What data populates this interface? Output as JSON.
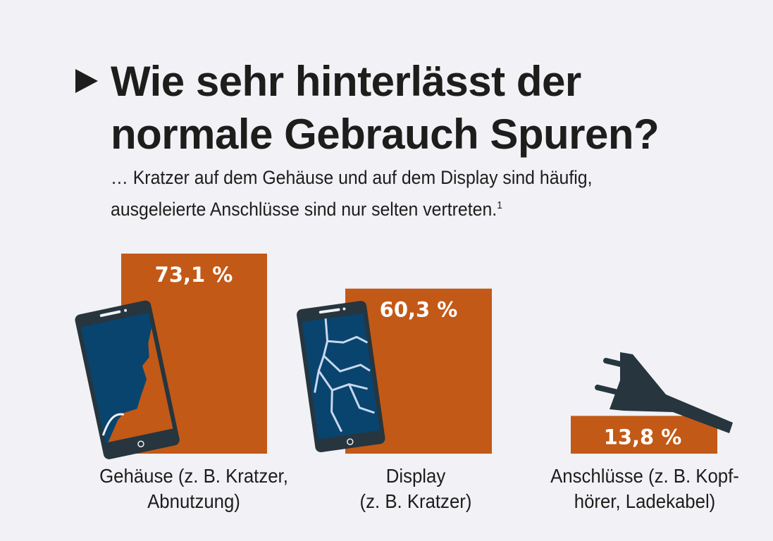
{
  "header": {
    "marker_icon": "triangle-right-icon",
    "title_line1": "Wie sehr hinterlässt der",
    "title_line2": "normale Gebrauch Spuren?",
    "subtitle_line1": "… Kratzer auf dem Gehäuse und auf dem Display sind häufig,",
    "subtitle_line2": "ausgeleierte Anschlüsse sind nur selten vertreten.",
    "footnote_mark": "1"
  },
  "colors": {
    "background": "#f1f1f6",
    "bar": "#c25917",
    "phone_body": "#26353e",
    "phone_screen": "#08446e",
    "crack": "#c9d7ee",
    "text": "#1d1d1b"
  },
  "chart_data": {
    "type": "bar",
    "title": "Wie sehr hinterlässt der normale Gebrauch Spuren?",
    "subtitle": "… Kratzer auf dem Gehäuse und auf dem Display sind häufig, ausgeleierte Anschlüsse sind nur selten vertreten.",
    "categories": [
      "Gehäuse (z. B. Kratzer, Abnutzung)",
      "Display (z. B. Kratzer)",
      "Anschlüsse (z. B. Kopfhörer, Ladekabel)"
    ],
    "category_lines": [
      [
        "Gehäuse (z. B. Kratzer,",
        "Abnutzung)"
      ],
      [
        "Display",
        "(z. B. Kratzer)"
      ],
      [
        "Anschlüsse (z. B. Kopf-",
        "hörer, Ladekabel)"
      ]
    ],
    "values": [
      73.1,
      60.3,
      13.8
    ],
    "value_labels": [
      "73,1 %",
      "60,3 %",
      "13,8 %"
    ],
    "unit": "%",
    "icons": [
      "broken-phone-icon",
      "cracked-screen-phone-icon",
      "plug-icon"
    ],
    "xlabel": "",
    "ylabel": "",
    "ylim": [
      0,
      100
    ],
    "grid": false,
    "legend": "none"
  }
}
